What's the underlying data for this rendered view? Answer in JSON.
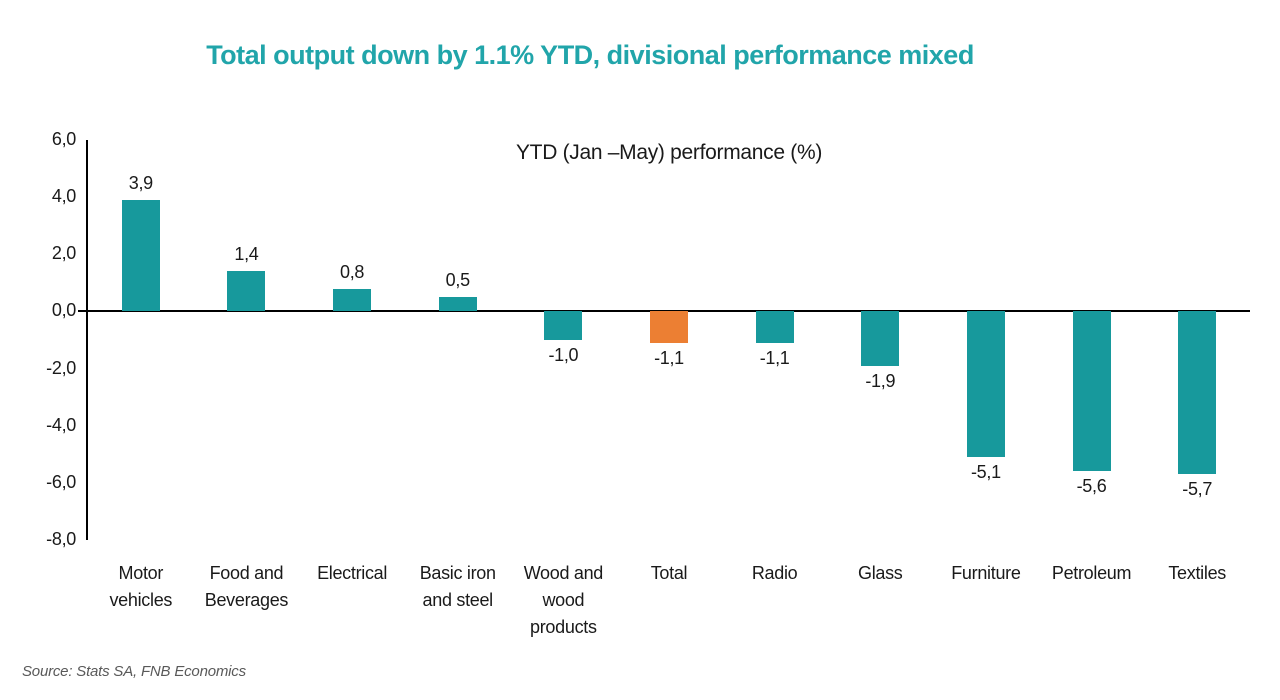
{
  "header": {
    "title": "Total output down by 1.1% YTD, divisional performance mixed",
    "title_color": "#21a5aa"
  },
  "chart_data": {
    "type": "bar",
    "title": "YTD (Jan –May) performance (%)",
    "categories": [
      "Motor vehicles",
      "Food and Beverages",
      "Electrical",
      "Basic iron and steel",
      "Wood and wood products",
      "Total",
      "Radio",
      "Glass",
      "Furniture",
      "Petroleum",
      "Textiles"
    ],
    "values": [
      3.9,
      1.4,
      0.8,
      0.5,
      -1.0,
      -1.1,
      -1.1,
      -1.9,
      -5.1,
      -5.6,
      -5.7
    ],
    "value_labels": [
      "3,9",
      "1,4",
      "0,8",
      "0,5",
      "-1,0",
      "-1,1",
      "-1,1",
      "-1,9",
      "-5,1",
      "-5,6",
      "-5,7"
    ],
    "highlight_category": "Total",
    "bar_color": "#17999c",
    "highlight_color": "#ec7f33",
    "ylim": [
      -8,
      6
    ],
    "ytick_step": 2,
    "ytick_labels": [
      "6,0",
      "4,0",
      "2,0",
      "0,0",
      "-2,0",
      "-4,0",
      "-6,0",
      "-8,0"
    ],
    "ytick_values": [
      6,
      4,
      2,
      0,
      -2,
      -4,
      -6,
      -8
    ],
    "grid": false,
    "legend": false,
    "axis_color": "#000000"
  },
  "footer": {
    "source": "Source: Stats SA, FNB Economics"
  }
}
